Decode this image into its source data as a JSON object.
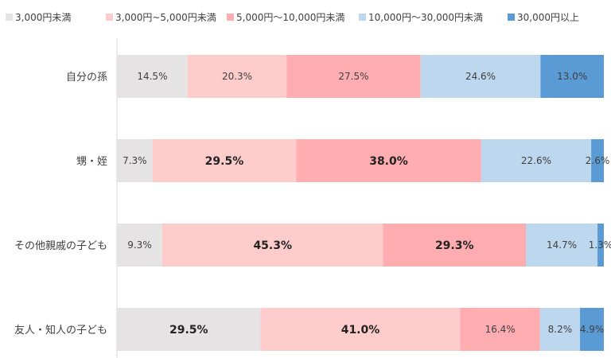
{
  "chart_data": {
    "type": "bar",
    "orientation": "horizontal",
    "stacked": true,
    "percent": true,
    "legend_position": "top",
    "grid": false,
    "xlim": [
      0,
      100
    ],
    "categories": [
      "自分の孫",
      "甥・姪",
      "その他親戚の子ども",
      "友人・知人の子ども"
    ],
    "series": [
      {
        "name": "3,000円未満",
        "color": "#e6e3e4",
        "values": [
          14.5,
          7.3,
          9.3,
          29.5
        ],
        "labels": [
          "14.5%",
          "7.3%",
          "9.3%",
          "29.5%"
        ],
        "bold": [
          false,
          false,
          false,
          true
        ]
      },
      {
        "name": "3,000円~5,000円未満",
        "color": "#ffcccc",
        "values": [
          20.3,
          29.5,
          45.3,
          41.0
        ],
        "labels": [
          "20.3%",
          "29.5%",
          "45.3%",
          "41.0%"
        ],
        "bold": [
          false,
          true,
          true,
          true
        ]
      },
      {
        "name": "5,000円～10,000円未満",
        "color": "#ffadb1",
        "values": [
          27.5,
          38.0,
          29.3,
          16.4
        ],
        "labels": [
          "27.5%",
          "38.0%",
          "29.3%",
          "16.4%"
        ],
        "bold": [
          false,
          true,
          true,
          false
        ]
      },
      {
        "name": "10,000円～30,000円未満",
        "color": "#bdd7ee",
        "values": [
          24.6,
          22.6,
          14.7,
          8.2
        ],
        "labels": [
          "24.6%",
          "22.6%",
          "14.7%",
          "8.2%"
        ],
        "bold": [
          false,
          false,
          false,
          false
        ]
      },
      {
        "name": "30,000円以上",
        "color": "#5b9bd5",
        "values": [
          13.0,
          2.6,
          1.3,
          4.9
        ],
        "labels": [
          "13.0%",
          "2.6%",
          "1.3%",
          "4.9%"
        ],
        "bold": [
          false,
          false,
          false,
          false
        ]
      }
    ]
  }
}
